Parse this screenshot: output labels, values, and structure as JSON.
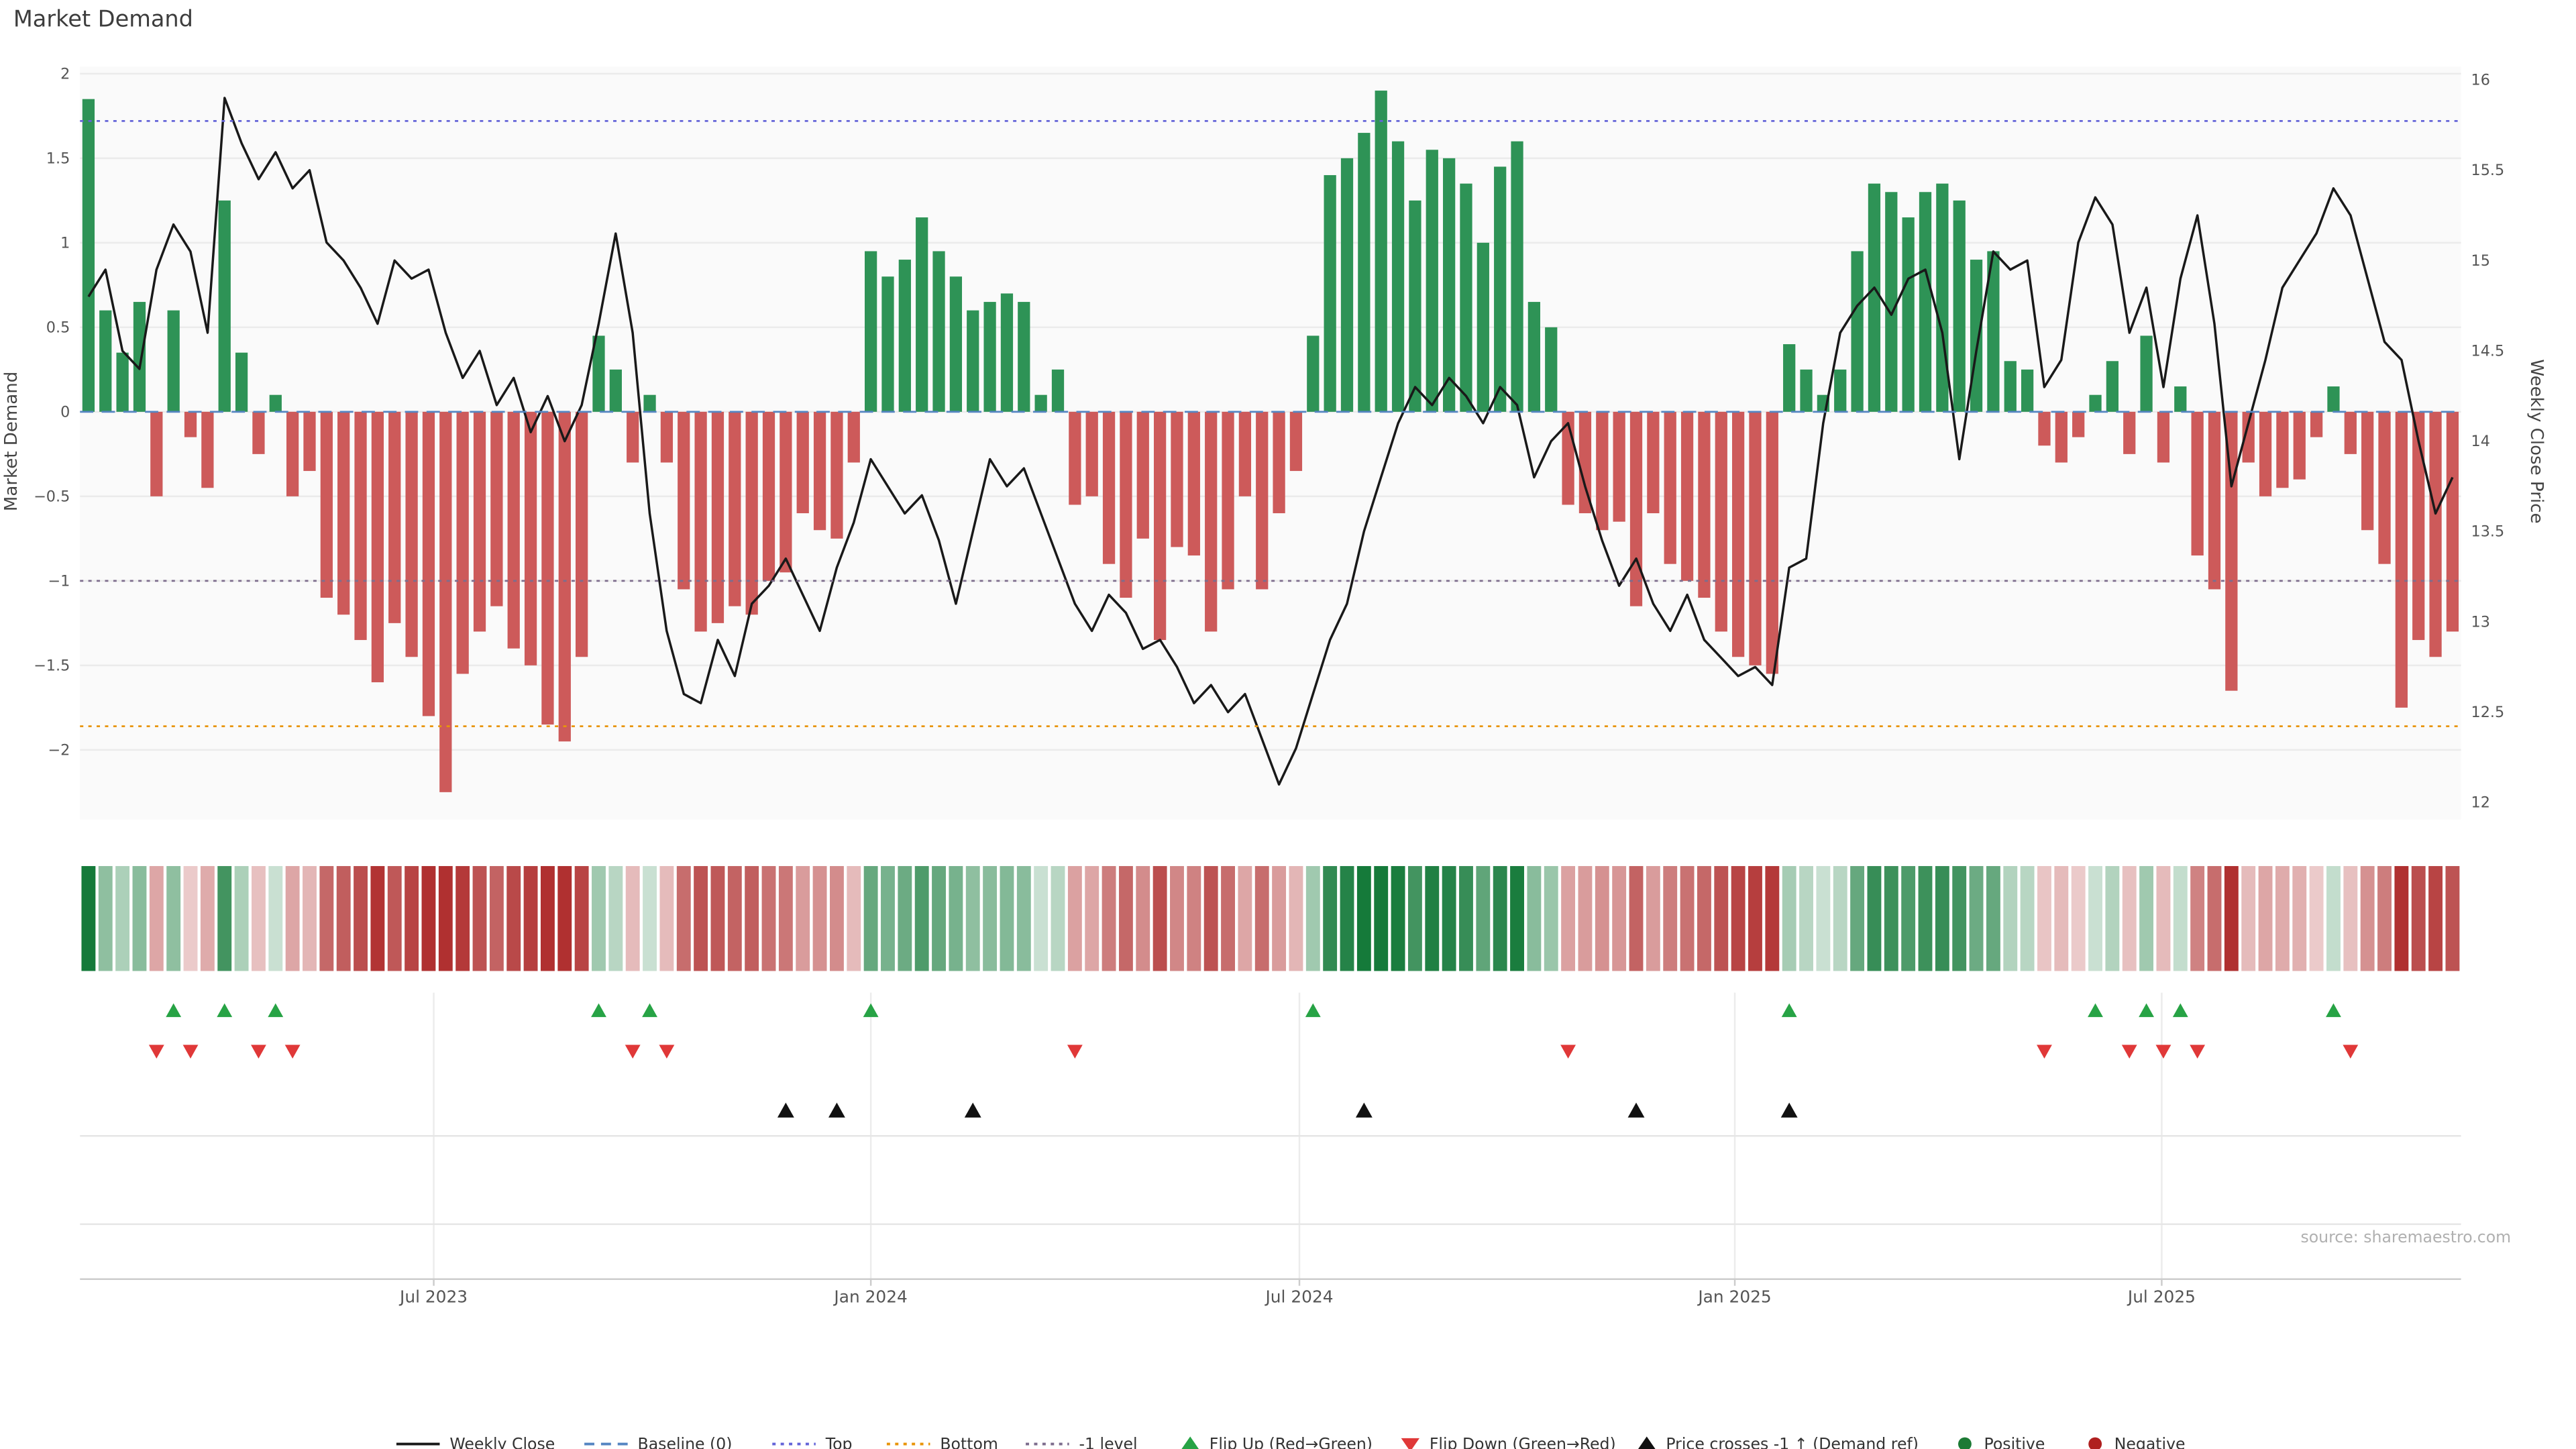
{
  "title": "Market Demand",
  "axes": {
    "left_title": "Market Demand",
    "right_title": "Weekly Close Price"
  },
  "source": "source: sharemaestro.com",
  "colors": {
    "positive_bar": "#2e9356",
    "negative_bar": "#cd5a5a",
    "price_line": "#191919",
    "baseline": "#5585c2",
    "top_line": "#6464d8",
    "bottom_line": "#e8940a",
    "minus1_line": "#7d6d8d",
    "flip_up": "#27a345",
    "flip_down": "#e03838",
    "price_cross": "#111111",
    "positive_dot": "#1d7a35",
    "negative_dot": "#b02020",
    "heat_green": [
      21,
      122,
      58
    ],
    "heat_red": [
      176,
      48,
      48
    ]
  },
  "legend": {
    "items": [
      {
        "label": "Weekly Close",
        "type": "line",
        "color": "#191919"
      },
      {
        "label": "Baseline (0)",
        "type": "dash",
        "color": "#5585c2"
      },
      {
        "label": "Top",
        "type": "dot",
        "color": "#6464d8"
      },
      {
        "label": "Bottom",
        "type": "dot",
        "color": "#e8940a"
      },
      {
        "label": "-1 level",
        "type": "dot",
        "color": "#7d6d8d"
      },
      {
        "label": "Flip Up (Red→Green)",
        "type": "triangle-up",
        "color": "#27a345"
      },
      {
        "label": "Flip Down (Green→Red)",
        "type": "triangle-down",
        "color": "#e03838"
      },
      {
        "label": "Price crosses -1 ↑ (Demand ref)",
        "type": "triangle-up",
        "color": "#111111"
      },
      {
        "label": "Positive",
        "type": "circle",
        "color": "#1d7a35"
      },
      {
        "label": "Negative",
        "type": "circle",
        "color": "#b02020"
      }
    ]
  },
  "chart_data": {
    "type": "bar+line",
    "title": "Market Demand",
    "xlabel": "",
    "ylabel_left": "Market Demand",
    "ylabel_right": "Weekly Close Price",
    "x_unit": "week",
    "n_points": 140,
    "ylim_left": [
      -2.37,
      2.04
    ],
    "ylim_right": [
      12,
      16
    ],
    "left_axis_ticks": [
      2,
      1.5,
      1,
      0.5,
      0,
      -0.5,
      -1,
      -1.5,
      -2
    ],
    "right_axis_ticks": [
      16,
      15.5,
      15,
      14.5,
      14,
      13.5,
      13,
      12.5,
      12
    ],
    "x_ticks": [
      {
        "label": "Jul 2023",
        "pos": 20.8
      },
      {
        "label": "Jan 2024",
        "pos": 46.5
      },
      {
        "label": "Jul 2024",
        "pos": 71.7
      },
      {
        "label": "Jan 2025",
        "pos": 97.3
      },
      {
        "label": "Jul 2025",
        "pos": 122.4
      }
    ],
    "ref_lines": [
      {
        "name": "baseline",
        "label": "Baseline (0)",
        "value": 0,
        "color": "#5585c2",
        "style": "dash"
      },
      {
        "name": "top",
        "label": "Top",
        "value": 1.72,
        "color": "#6464d8",
        "style": "dot"
      },
      {
        "name": "bottom",
        "label": "Bottom",
        "value": -1.86,
        "color": "#e8940a",
        "style": "dot"
      },
      {
        "name": "minus1",
        "label": "-1 level",
        "value": -1,
        "color": "#7d6d8d",
        "style": "dot"
      }
    ],
    "series": [
      {
        "name": "Market Demand",
        "axis": "left",
        "type": "bar"
      },
      {
        "name": "Weekly Close",
        "axis": "right",
        "type": "line"
      }
    ],
    "demand": [
      1.85,
      0.6,
      0.35,
      0.65,
      -0.5,
      0.6,
      -0.15,
      -0.45,
      1.25,
      0.35,
      -0.25,
      0.1,
      -0.5,
      -0.35,
      -1.1,
      -1.2,
      -1.35,
      -1.6,
      -1.25,
      -1.45,
      -1.8,
      -2.25,
      -1.55,
      -1.3,
      -1.15,
      -1.4,
      -1.5,
      -1.85,
      -1.95,
      -1.45,
      0.45,
      0.25,
      -0.3,
      0.1,
      -0.3,
      -1.05,
      -1.3,
      -1.25,
      -1.15,
      -1.2,
      -1.0,
      -0.95,
      -0.6,
      -0.7,
      -0.75,
      -0.3,
      0.95,
      0.8,
      0.9,
      1.15,
      0.95,
      0.8,
      0.6,
      0.65,
      0.7,
      0.65,
      0.1,
      0.25,
      -0.55,
      -0.5,
      -0.9,
      -1.1,
      -0.75,
      -1.35,
      -0.8,
      -0.85,
      -1.3,
      -1.05,
      -0.5,
      -1.05,
      -0.6,
      -0.35,
      0.45,
      1.4,
      1.5,
      1.65,
      1.9,
      1.6,
      1.25,
      1.55,
      1.5,
      1.35,
      1.0,
      1.45,
      1.6,
      0.65,
      0.5,
      -0.55,
      -0.6,
      -0.7,
      -0.65,
      -1.15,
      -0.6,
      -0.9,
      -1.0,
      -1.1,
      -1.3,
      -1.45,
      -1.5,
      -1.55,
      0.4,
      0.25,
      0.1,
      0.25,
      0.95,
      1.35,
      1.3,
      1.15,
      1.3,
      1.35,
      1.25,
      0.9,
      0.95,
      0.3,
      0.25,
      -0.2,
      -0.3,
      -0.15,
      0.1,
      0.3,
      -0.25,
      0.45,
      -0.3,
      0.15,
      -0.85,
      -1.05,
      -1.65,
      -0.3,
      -0.5,
      -0.45,
      -0.4,
      -0.15,
      0.15,
      -0.25,
      -0.7,
      -0.9,
      -1.75,
      -1.35,
      -1.45,
      -1.3
    ],
    "price": [
      14.8,
      14.95,
      14.5,
      14.4,
      14.95,
      15.2,
      15.05,
      14.6,
      15.9,
      15.65,
      15.45,
      15.6,
      15.4,
      15.5,
      15.1,
      15.0,
      14.85,
      14.65,
      15.0,
      14.9,
      14.95,
      14.6,
      14.35,
      14.5,
      14.2,
      14.35,
      14.05,
      14.25,
      14.0,
      14.2,
      14.65,
      15.15,
      14.6,
      13.6,
      12.95,
      12.6,
      12.55,
      12.9,
      12.7,
      13.1,
      13.2,
      13.35,
      13.15,
      12.95,
      13.3,
      13.55,
      13.9,
      13.75,
      13.6,
      13.7,
      13.45,
      13.1,
      13.5,
      13.9,
      13.75,
      13.85,
      13.6,
      13.35,
      13.1,
      12.95,
      13.15,
      13.05,
      12.85,
      12.9,
      12.75,
      12.55,
      12.65,
      12.5,
      12.6,
      12.35,
      12.1,
      12.3,
      12.6,
      12.9,
      13.1,
      13.5,
      13.8,
      14.1,
      14.3,
      14.2,
      14.35,
      14.25,
      14.1,
      14.3,
      14.2,
      13.8,
      14.0,
      14.1,
      13.75,
      13.45,
      13.2,
      13.35,
      13.1,
      12.95,
      13.15,
      12.9,
      12.8,
      12.7,
      12.75,
      12.65,
      13.3,
      13.35,
      14.1,
      14.6,
      14.75,
      14.85,
      14.7,
      14.9,
      14.95,
      14.6,
      13.9,
      14.5,
      15.05,
      14.95,
      15.0,
      14.3,
      14.45,
      15.1,
      15.35,
      15.2,
      14.6,
      14.85,
      14.3,
      14.9,
      15.25,
      14.65,
      13.75,
      14.1,
      14.45,
      14.85,
      15.0,
      15.15,
      15.4,
      15.25,
      14.9,
      14.55,
      14.45,
      14.0,
      13.6,
      13.8
    ],
    "price_cross_indices": [
      41,
      44,
      52,
      75,
      91,
      100
    ]
  }
}
